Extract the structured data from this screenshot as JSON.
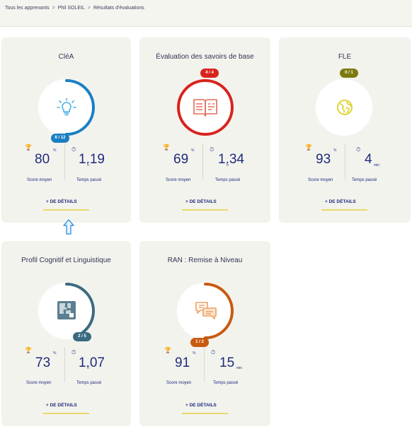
{
  "breadcrumb": {
    "items": [
      "Tous les apprenants",
      "Phil SOLEIL",
      "Résultats d'évaluations"
    ],
    "separator": ">"
  },
  "cards": [
    {
      "title": "CléA",
      "badge": "6 / 12",
      "progress": 0.5,
      "color": "#1a7fc4",
      "icon": "lightbulb-icon",
      "score": "80",
      "score_unit": "%",
      "time": "1.19",
      "time_unit": "h",
      "score_label": "Score moyen",
      "time_label": "Temps passé",
      "details": "+ DE DÉTAILS"
    },
    {
      "title": "Évaluation des savoirs de base",
      "badge": "4 / 4",
      "progress": 1.0,
      "color": "#d9231d",
      "icon": "open-book-icon",
      "score": "69",
      "score_unit": "%",
      "time": "1.34",
      "time_unit": "h",
      "score_label": "Score moyen",
      "time_label": "Temps passé",
      "details": "+ DE DÉTAILS"
    },
    {
      "title": "FLE",
      "badge": "0 / 1",
      "progress": 0.0,
      "color": "#7a7a10",
      "icon": "globe-icon",
      "score": "93",
      "score_unit": "%",
      "time": "4",
      "time_unit": "min",
      "score_label": "Score moyen",
      "time_label": "Temps passé",
      "details": "+ DE DÉTAILS"
    },
    {
      "title": "Profil Cognitif et Linguistique",
      "badge": "2 / 5",
      "progress": 0.4,
      "color": "#3b6b80",
      "icon": "puzzle-icon",
      "score": "73",
      "score_unit": "%",
      "time": "1.07",
      "time_unit": "h",
      "score_label": "Score moyen",
      "time_label": "Temps passé",
      "details": "+ DE DÉTAILS"
    },
    {
      "title": "RAN : Remise à Niveau",
      "badge": "1 / 2",
      "progress": 0.5,
      "color": "#c85a10",
      "icon": "chat-bubbles-icon",
      "score": "91",
      "score_unit": "%",
      "time": "15",
      "time_unit": "min",
      "score_label": "Score moyen",
      "time_label": "Temps passé",
      "details": "+ DE DÉTAILS"
    }
  ]
}
